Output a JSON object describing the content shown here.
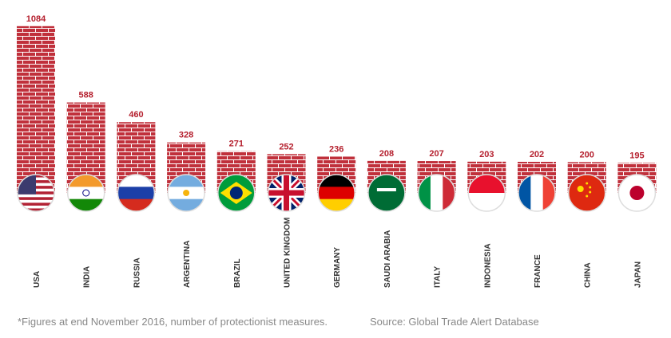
{
  "chart_data": {
    "type": "bar",
    "categories": [
      "USA",
      "INDIA",
      "RUSSIA",
      "ARGENTINA",
      "BRAZIL",
      "UNITED KINGDOM",
      "GERMANY",
      "SAUDI ARABIA",
      "ITALY",
      "INDONESIA",
      "FRANCE",
      "CHINA",
      "JAPAN"
    ],
    "values": [
      1084,
      588,
      460,
      328,
      271,
      252,
      236,
      208,
      207,
      203,
      202,
      200,
      195
    ],
    "color": "#c0303b",
    "footnote": "*Figures at end November 2016, number of protectionist measures.",
    "source": "Source: Global Trade Alert Database"
  }
}
